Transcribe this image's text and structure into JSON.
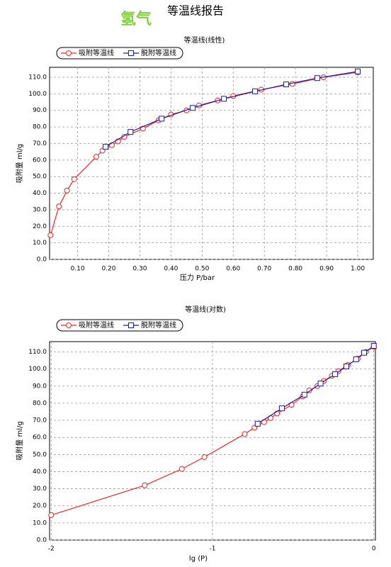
{
  "header": {
    "gas": "氢气",
    "title": "等温线报告"
  },
  "chart_data": [
    {
      "type": "line",
      "title": "等温线(线性)",
      "x_label": "压力 P/bar",
      "y_label": "吸附量 ml/g",
      "grid": true,
      "legend": "top-left",
      "xlim": [
        0.01,
        1.05
      ],
      "ylim": [
        0,
        116
      ],
      "xticks": [
        {
          "value": 0.1,
          "label": "0.10"
        },
        {
          "value": 0.2,
          "label": "0.20"
        },
        {
          "value": 0.3,
          "label": "0.30"
        },
        {
          "value": 0.4,
          "label": "0.40"
        },
        {
          "value": 0.5,
          "label": "0.50"
        },
        {
          "value": 0.6,
          "label": "0.60"
        },
        {
          "value": 0.7,
          "label": "0.70"
        },
        {
          "value": 0.8,
          "label": "0.80"
        },
        {
          "value": 0.9,
          "label": "0.90"
        },
        {
          "value": 1.0,
          "label": "1.00"
        }
      ],
      "yticks": [
        {
          "value": 0,
          "label": "0.0"
        },
        {
          "value": 10,
          "label": "10.0"
        },
        {
          "value": 20,
          "label": "20.0"
        },
        {
          "value": 30,
          "label": "30.0"
        },
        {
          "value": 40,
          "label": "40.0"
        },
        {
          "value": 50,
          "label": "50.0"
        },
        {
          "value": 60,
          "label": "60.0"
        },
        {
          "value": 70,
          "label": "70.0"
        },
        {
          "value": 80,
          "label": "80.0"
        },
        {
          "value": 90,
          "label": "90.0"
        },
        {
          "value": 100,
          "label": "100.0"
        },
        {
          "value": 110,
          "label": "110.0"
        }
      ],
      "series": [
        {
          "name": "吸附等温线",
          "color": "#e8262b",
          "marker": "circle",
          "x": [
            0.013,
            0.04,
            0.066,
            0.089,
            0.16,
            0.18,
            0.21,
            0.23,
            0.25,
            0.31,
            0.36,
            0.4,
            0.45,
            0.49,
            0.55,
            0.6,
            0.69,
            0.79,
            0.89,
            1.0
          ],
          "values": [
            14.6,
            32,
            41.6,
            48.5,
            62,
            65.7,
            69,
            71.3,
            74,
            79,
            84,
            87.5,
            90,
            93,
            96,
            98.7,
            102.5,
            106,
            110,
            113
          ]
        },
        {
          "name": "脱附等温线",
          "color": "#1a1a9a",
          "marker": "square",
          "x": [
            0.19,
            0.27,
            0.37,
            0.47,
            0.57,
            0.67,
            0.77,
            0.87,
            1.0
          ],
          "values": [
            68,
            77,
            85,
            91.5,
            97,
            101.5,
            105.7,
            109.5,
            113.5
          ]
        }
      ]
    },
    {
      "type": "line",
      "title": "等温线(对数)",
      "x_label": "lg (P)",
      "y_label": "吸附量 ml/g",
      "grid": true,
      "legend": "top-left",
      "xlim": [
        -2.01,
        0.01
      ],
      "ylim": [
        0,
        116
      ],
      "xticks": [
        -2,
        -1,
        0
      ],
      "yticks": [
        {
          "value": 0,
          "label": "0.0"
        },
        {
          "value": 10,
          "label": "10.0"
        },
        {
          "value": 20,
          "label": "20.0"
        },
        {
          "value": 30,
          "label": "30.0"
        },
        {
          "value": 40,
          "label": "40.0"
        },
        {
          "value": 50,
          "label": "50.0"
        },
        {
          "value": 60,
          "label": "60.0"
        },
        {
          "value": 70,
          "label": "70.0"
        },
        {
          "value": 80,
          "label": "80.0"
        },
        {
          "value": 90,
          "label": "90.0"
        },
        {
          "value": 100,
          "label": "100.0"
        },
        {
          "value": 110,
          "label": "110.0"
        }
      ],
      "series": [
        {
          "name": "吸附等温线",
          "color": "#e8262b",
          "marker": "circle",
          "x": [
            -2,
            -1.42,
            -1.19,
            -1.05,
            -0.8,
            -0.74,
            -0.68,
            -0.64,
            -0.6,
            -0.51,
            -0.44,
            -0.4,
            -0.35,
            -0.31,
            -0.26,
            -0.22,
            -0.16,
            -0.1,
            -0.05,
            0
          ],
          "values": [
            14.6,
            32,
            41.6,
            48.5,
            62,
            65.7,
            69,
            71.3,
            74,
            79,
            84,
            87.5,
            90,
            93,
            96,
            98.7,
            102.5,
            106,
            110,
            113
          ]
        },
        {
          "name": "脱附等温线",
          "color": "#1a1a9a",
          "marker": "square",
          "x": [
            -0.72,
            -0.57,
            -0.43,
            -0.33,
            -0.24,
            -0.17,
            -0.11,
            -0.06,
            0
          ],
          "values": [
            68,
            77,
            85,
            91.5,
            97,
            101.5,
            105.7,
            109.5,
            113.5
          ]
        }
      ]
    }
  ]
}
